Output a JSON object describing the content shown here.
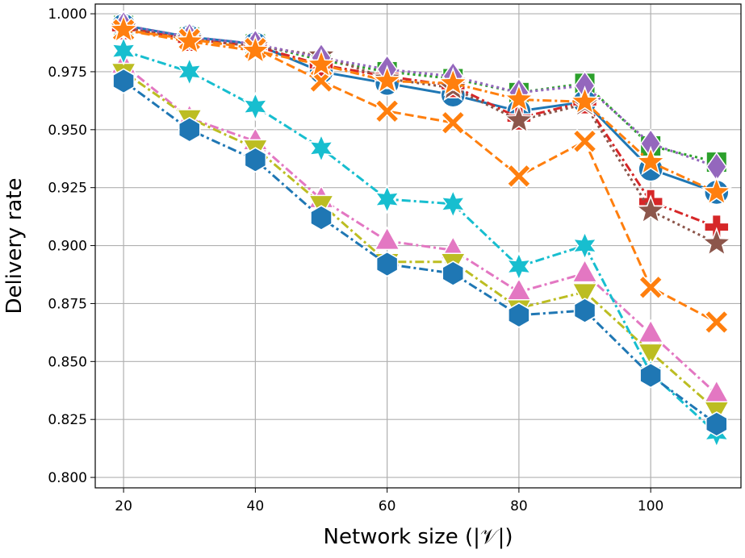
{
  "chart_data": {
    "type": "line",
    "x_label": "Network size (|𝒱|)",
    "y_label": "Delivery rate",
    "x": [
      20,
      30,
      40,
      50,
      60,
      70,
      80,
      90,
      100,
      110
    ],
    "xlim": [
      15.7,
      113.7
    ],
    "ylim": [
      0.7955,
      1.0042
    ],
    "xticks": [
      20,
      40,
      60,
      80,
      100
    ],
    "yticks": [
      {
        "value": 0.8,
        "label": "0.800"
      },
      {
        "value": 0.825,
        "label": "0.825"
      },
      {
        "value": 0.85,
        "label": "0.850"
      },
      {
        "value": 0.875,
        "label": "0.875"
      },
      {
        "value": 0.9,
        "label": "0.900"
      },
      {
        "value": 0.925,
        "label": "0.925"
      },
      {
        "value": 0.95,
        "label": "0.950"
      },
      {
        "value": 0.975,
        "label": "0.975"
      },
      {
        "value": 1.0,
        "label": "1.000"
      }
    ],
    "grid": true,
    "series": [
      {
        "color": "#2ca02c",
        "marker": "square",
        "linestyle": "dotted",
        "values": [
          0.995,
          0.99,
          0.987,
          0.98,
          0.975,
          0.972,
          0.966,
          0.97,
          0.943,
          0.936
        ]
      },
      {
        "color": "#1f77b4",
        "marker": "circle",
        "linestyle": "solid",
        "values": [
          0.995,
          0.99,
          0.987,
          0.975,
          0.97,
          0.965,
          0.958,
          0.962,
          0.933,
          0.923
        ]
      },
      {
        "color": "#d62728",
        "marker": "plus",
        "linestyle": "dashdot",
        "values": [
          0.994,
          0.989,
          0.986,
          0.978,
          0.973,
          0.969,
          0.955,
          0.962,
          0.919,
          0.908
        ]
      },
      {
        "color": "#8c564b",
        "marker": "star5",
        "linestyle": "dotted",
        "values": [
          0.994,
          0.989,
          0.986,
          0.982,
          0.972,
          0.968,
          0.954,
          0.961,
          0.915,
          0.901
        ]
      },
      {
        "color": "#9467bd",
        "marker": "diamond",
        "linestyle": "dotted",
        "values": [
          0.995,
          0.99,
          0.987,
          0.981,
          0.976,
          0.973,
          0.966,
          0.969,
          0.944,
          0.934
        ]
      },
      {
        "color": "#ff7f0e",
        "marker": "x",
        "linestyle": "dashed",
        "values": [
          0.993,
          0.989,
          0.985,
          0.971,
          0.958,
          0.953,
          0.93,
          0.945,
          0.882,
          0.867
        ]
      },
      {
        "color": "#ff7f0e",
        "marker": "star5",
        "linestyle": "dashdot",
        "values": [
          0.993,
          0.988,
          0.984,
          0.978,
          0.971,
          0.97,
          0.963,
          0.962,
          0.936,
          0.923
        ]
      },
      {
        "color": "#e377c2",
        "marker": "triangle-up",
        "linestyle": "dashdot",
        "values": [
          0.978,
          0.955,
          0.945,
          0.92,
          0.902,
          0.898,
          0.88,
          0.888,
          0.862,
          0.836
        ]
      },
      {
        "color": "#bcbd22",
        "marker": "triangle-down",
        "linestyle": "dashdot",
        "values": [
          0.975,
          0.955,
          0.942,
          0.918,
          0.893,
          0.893,
          0.873,
          0.88,
          0.854,
          0.829
        ]
      },
      {
        "color": "#17becf",
        "marker": "star6",
        "linestyle": "dashdot",
        "values": [
          0.984,
          0.975,
          0.96,
          0.942,
          0.92,
          0.918,
          0.891,
          0.9,
          0.845,
          0.819
        ]
      },
      {
        "color": "#1f77b4",
        "marker": "hexagon",
        "linestyle": "dashdot",
        "values": [
          0.971,
          0.95,
          0.937,
          0.912,
          0.892,
          0.888,
          0.87,
          0.872,
          0.844,
          0.823
        ]
      }
    ]
  }
}
